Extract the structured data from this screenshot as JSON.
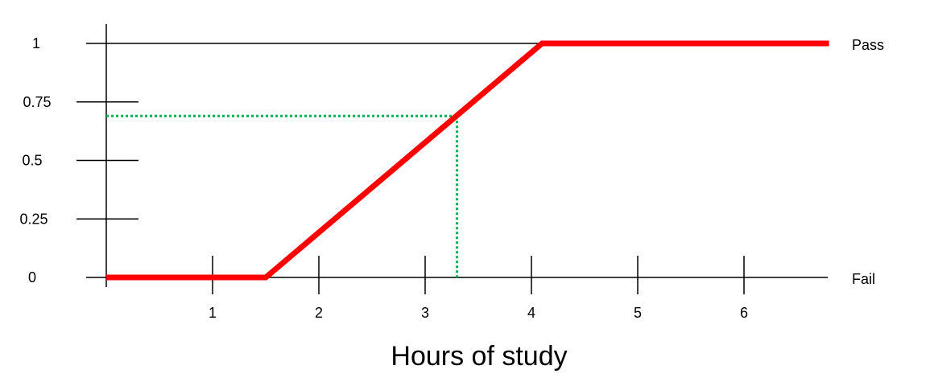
{
  "chart_data": {
    "type": "line",
    "xlabel": "Hours of study",
    "ylabel": "",
    "xlim": [
      0,
      6.8
    ],
    "ylim": [
      0,
      1
    ],
    "x_ticks": [
      1,
      2,
      3,
      4,
      5,
      6
    ],
    "y_ticks": [
      0,
      0.25,
      0.5,
      0.75,
      1
    ],
    "x_tick_labels": [
      "1",
      "2",
      "3",
      "4",
      "5",
      "6"
    ],
    "y_tick_labels": [
      "0",
      "0.25",
      "0.5",
      "0.75",
      "1"
    ],
    "right_labels": {
      "top": "Pass",
      "bottom": "Fail"
    },
    "series": [
      {
        "x": [
          0,
          1.5,
          4.1,
          6.8
        ],
        "y": [
          0,
          0,
          1,
          1
        ],
        "color": "#ff0000",
        "style": "solid"
      }
    ],
    "reference_point": {
      "x": 3.3,
      "y": 0.69,
      "color": "#00b050",
      "style": "dotted"
    },
    "grid": false,
    "legend": "none"
  }
}
